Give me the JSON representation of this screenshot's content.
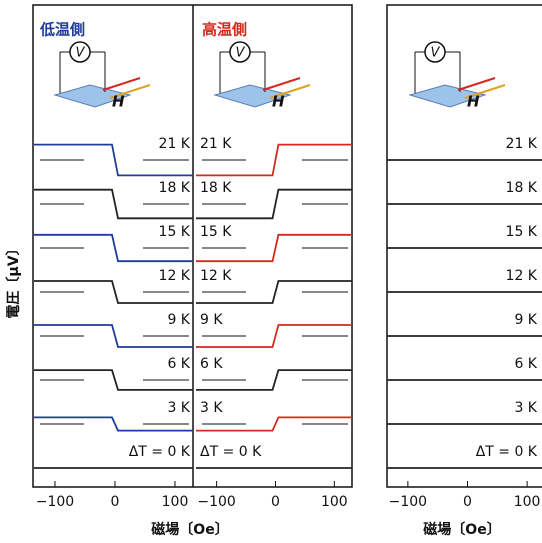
{
  "chart_data": [
    {
      "type": "line",
      "title": "低温側",
      "title_color": "#1f3c9a",
      "annotations": [
        "V",
        "H"
      ],
      "x": [
        -135,
        -30,
        -5,
        5,
        30,
        130
      ],
      "xlim": [
        -135,
        130
      ],
      "xticks": [
        {
          "value": -100,
          "label": "−100"
        },
        0,
        100
      ],
      "ylim": [
        -1,
        1
      ],
      "series": [
        {
          "name": "21 K",
          "color": "#1f3c9a",
          "values": [
            0.7,
            0.7,
            0.7,
            -0.7,
            -0.7,
            -0.7
          ]
        },
        {
          "name": "18 K",
          "color": "#222222",
          "values": [
            0.65,
            0.65,
            0.65,
            -0.65,
            -0.65,
            -0.65
          ]
        },
        {
          "name": "15 K",
          "color": "#1f3c9a",
          "values": [
            0.6,
            0.6,
            0.6,
            -0.6,
            -0.6,
            -0.6
          ]
        },
        {
          "name": "12 K",
          "color": "#222222",
          "values": [
            0.5,
            0.5,
            0.5,
            -0.5,
            -0.5,
            -0.5
          ]
        },
        {
          "name": "9 K",
          "color": "#1f3c9a",
          "values": [
            0.5,
            0.5,
            0.5,
            -0.5,
            -0.5,
            -0.5
          ]
        },
        {
          "name": "6 K",
          "color": "#222222",
          "values": [
            0.45,
            0.45,
            0.45,
            -0.45,
            -0.45,
            -0.45
          ]
        },
        {
          "name": "3 K",
          "color": "#1f3c9a",
          "values": [
            0.3,
            0.3,
            0.3,
            -0.3,
            -0.3,
            -0.3
          ]
        },
        {
          "name": "ΔT = 0 K",
          "color": "#222222",
          "values": [
            0,
            0,
            0,
            0,
            0,
            0
          ]
        }
      ]
    },
    {
      "type": "line",
      "title": "高温側",
      "title_color": "#d42a1e",
      "annotations": [
        "V",
        "H"
      ],
      "x": [
        -135,
        -30,
        -5,
        5,
        30,
        130
      ],
      "xlim": [
        -135,
        130
      ],
      "xticks": [
        {
          "value": -100,
          "label": "−100"
        },
        0,
        100
      ],
      "ylim": [
        -1,
        1
      ],
      "series": [
        {
          "name": "21 K",
          "color": "#d42a1e",
          "values": [
            -0.7,
            -0.7,
            -0.7,
            0.7,
            0.7,
            0.7
          ]
        },
        {
          "name": "18 K",
          "color": "#222222",
          "values": [
            -0.65,
            -0.65,
            -0.65,
            0.65,
            0.65,
            0.65
          ]
        },
        {
          "name": "15 K",
          "color": "#d42a1e",
          "values": [
            -0.6,
            -0.6,
            -0.6,
            0.6,
            0.6,
            0.6
          ]
        },
        {
          "name": "12 K",
          "color": "#222222",
          "values": [
            -0.5,
            -0.5,
            -0.5,
            0.5,
            0.5,
            0.5
          ]
        },
        {
          "name": "9 K",
          "color": "#d42a1e",
          "values": [
            -0.5,
            -0.5,
            -0.5,
            0.5,
            0.5,
            0.5
          ]
        },
        {
          "name": "6 K",
          "color": "#222222",
          "values": [
            -0.45,
            -0.45,
            -0.45,
            0.45,
            0.45,
            0.45
          ]
        },
        {
          "name": "3 K",
          "color": "#d42a1e",
          "values": [
            -0.3,
            -0.3,
            -0.3,
            0.3,
            0.3,
            0.3
          ]
        },
        {
          "name": "ΔT = 0 K",
          "color": "#222222",
          "values": [
            0,
            0,
            0,
            0,
            0,
            0
          ]
        }
      ]
    },
    {
      "type": "line",
      "annotations": [
        "V",
        "H"
      ],
      "x": [
        -135,
        -30,
        -5,
        5,
        30,
        130
      ],
      "xlim": [
        -135,
        130
      ],
      "xticks": [
        {
          "value": -100,
          "label": "−100"
        },
        0,
        100
      ],
      "ylim": [
        -1,
        1
      ],
      "series": [
        {
          "name": "21 K",
          "color": "#222222",
          "values": [
            0,
            0,
            0,
            0,
            0,
            0
          ]
        },
        {
          "name": "18 K",
          "color": "#222222",
          "values": [
            0,
            0,
            0,
            0,
            0,
            0
          ]
        },
        {
          "name": "15 K",
          "color": "#222222",
          "values": [
            0,
            0,
            0,
            0,
            0,
            0
          ]
        },
        {
          "name": "12 K",
          "color": "#222222",
          "values": [
            0,
            0,
            0,
            0,
            0,
            0
          ]
        },
        {
          "name": "9 K",
          "color": "#222222",
          "values": [
            0,
            0,
            0,
            0,
            0,
            0
          ]
        },
        {
          "name": "6 K",
          "color": "#222222",
          "values": [
            0,
            0,
            0,
            0,
            0,
            0
          ]
        },
        {
          "name": "3 K",
          "color": "#222222",
          "values": [
            0,
            0,
            0,
            0,
            0,
            0
          ]
        },
        {
          "name": "ΔT = 0 K",
          "color": "#222222",
          "values": [
            0,
            0,
            0,
            0,
            0,
            0
          ]
        }
      ]
    }
  ],
  "y_label": "電圧〔μV〕",
  "x_label": [
    "磁場〔Oe〕",
    "磁場〔Oe〕"
  ]
}
